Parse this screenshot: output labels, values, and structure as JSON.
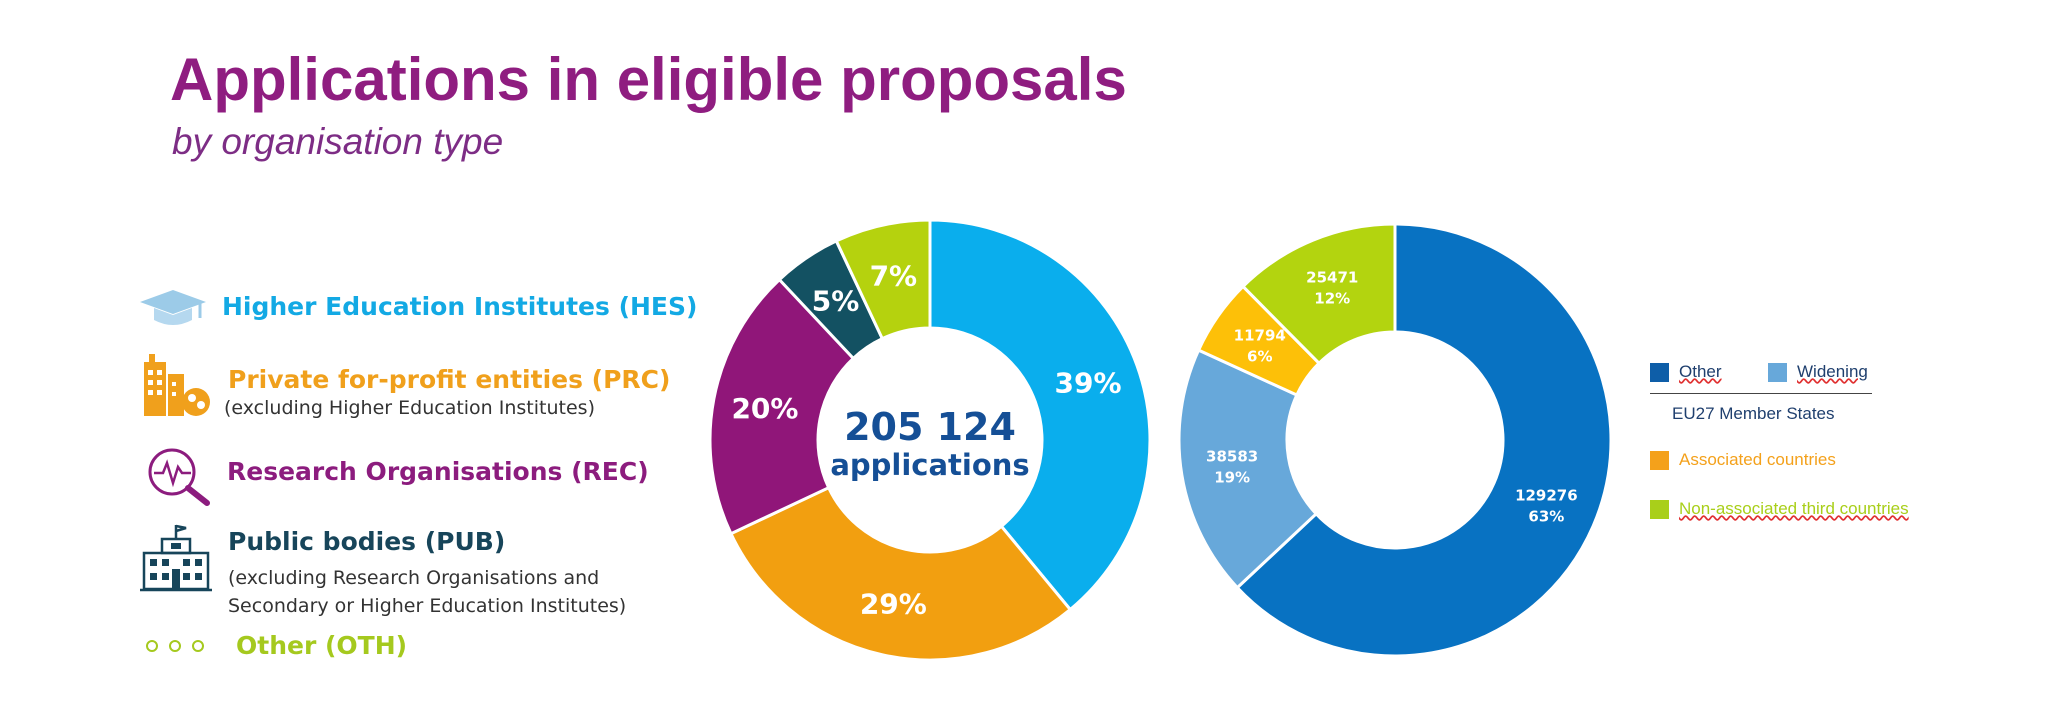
{
  "page": {
    "title": "Applications in eligible proposals",
    "subtitle": "by organisation type"
  },
  "categories": [
    {
      "label": "Higher Education Institutes (HES)",
      "note": [],
      "color": "#13a9e4",
      "icon": "graduation-cap-icon"
    },
    {
      "label": "Private for-profit entities (PRC)",
      "note": [
        "(excluding Higher Education Institutes)"
      ],
      "color": "#f0a01c",
      "icon": "buildings-icon"
    },
    {
      "label": "Research Organisations (REC)",
      "note": [],
      "color": "#8c1c7e",
      "icon": "research-magnifier-icon"
    },
    {
      "label": "Public bodies (PUB)",
      "note": [
        "(excluding Research Organisations and",
        "Secondary or Higher Education Institutes)"
      ],
      "color": "#17455a",
      "icon": "public-building-icon"
    },
    {
      "label": "Other (OTH)",
      "note": [],
      "color": "#a5c91e",
      "icon": "dots-icon"
    }
  ],
  "chart_data": [
    {
      "type": "pie",
      "variant": "donut",
      "center_value": "205 124",
      "center_label": "applications",
      "categories": [
        "HES",
        "PRC",
        "REC",
        "PUB",
        "OTH"
      ],
      "values": [
        39,
        29,
        20,
        5,
        7
      ],
      "labels": [
        "39%",
        "29%",
        "20%",
        "5%",
        "7%"
      ],
      "colors": [
        "#0aaeed",
        "#f29f10",
        "#901679",
        "#135162",
        "#b5d20e"
      ]
    },
    {
      "type": "pie",
      "variant": "donut",
      "categories": [
        "Other",
        "Widening",
        "Associated countries",
        "Non-associated third countries"
      ],
      "values": [
        129276,
        38583,
        11794,
        25471
      ],
      "value_labels": [
        "129276",
        "38583",
        "11794",
        "25471"
      ],
      "pct_labels": [
        "63%",
        "19%",
        "6%",
        "12%"
      ],
      "colors": [
        "#0872c2",
        "#67a8da",
        "#fdc008",
        "#b3d40f"
      ],
      "legend": {
        "group_label": "EU27 Member States",
        "items": [
          "Other",
          "Widening",
          "Associated countries",
          "Non-associated third countries"
        ],
        "colors": [
          "#0e5ea8",
          "#67a8da",
          "#f4a11b",
          "#a9cf1a"
        ],
        "text_colors": [
          "#1f3f6e",
          "#1f3f6e",
          "#f4a11b",
          "#a9cf1a"
        ],
        "placement": "right"
      }
    }
  ]
}
